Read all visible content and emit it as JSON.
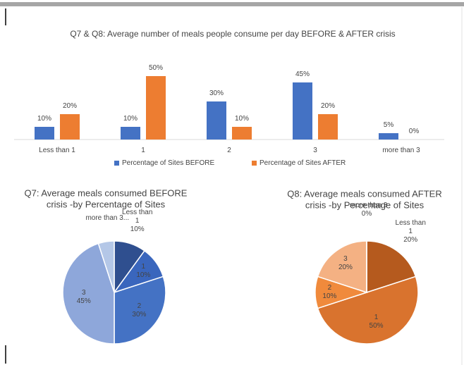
{
  "chart_data": [
    {
      "type": "bar",
      "title": "Q7 & Q8: Average number of meals people consume per day BEFORE & AFTER crisis",
      "categories": [
        "Less than 1",
        "1",
        "2",
        "3",
        "more than 3"
      ],
      "series": [
        {
          "name": "Percentage of Sites BEFORE",
          "color": "#4472c4",
          "values": [
            10,
            10,
            30,
            45,
            5
          ],
          "value_labels": [
            "10%",
            "10%",
            "30%",
            "45%",
            "5%"
          ]
        },
        {
          "name": "Percentage of Sites AFTER",
          "color": "#ed7d31",
          "values": [
            20,
            50,
            10,
            20,
            0
          ],
          "value_labels": [
            "20%",
            "50%",
            "10%",
            "20%",
            "0%"
          ]
        }
      ],
      "legend": "bottom"
    },
    {
      "type": "pie",
      "title": "Q7: Average meals consumed BEFORE crisis -by Percentage of Sites",
      "categories": [
        "Less than 1",
        "1",
        "2",
        "3",
        "more than 3..."
      ],
      "values": [
        10,
        10,
        30,
        45,
        5
      ],
      "value_labels": [
        "10%",
        "10%",
        "30%",
        "45%",
        null
      ],
      "colors": [
        "#2f4f8f",
        "#3a66bd",
        "#4472c4",
        "#8ea7da",
        "#b4c7e7"
      ]
    },
    {
      "type": "pie",
      "title": "Q8: Average meals consumed AFTER crisis -by Percentage of Sites",
      "categories": [
        "Less than 1",
        "1",
        "2",
        "3",
        "more than 3"
      ],
      "values": [
        20,
        50,
        10,
        20,
        0
      ],
      "value_labels": [
        "20%",
        "50%",
        "10%",
        "20%",
        "0%"
      ],
      "colors": [
        "#b55a1e",
        "#d9732e",
        "#f08a3c",
        "#f4b183",
        "#f8cbad"
      ]
    }
  ]
}
